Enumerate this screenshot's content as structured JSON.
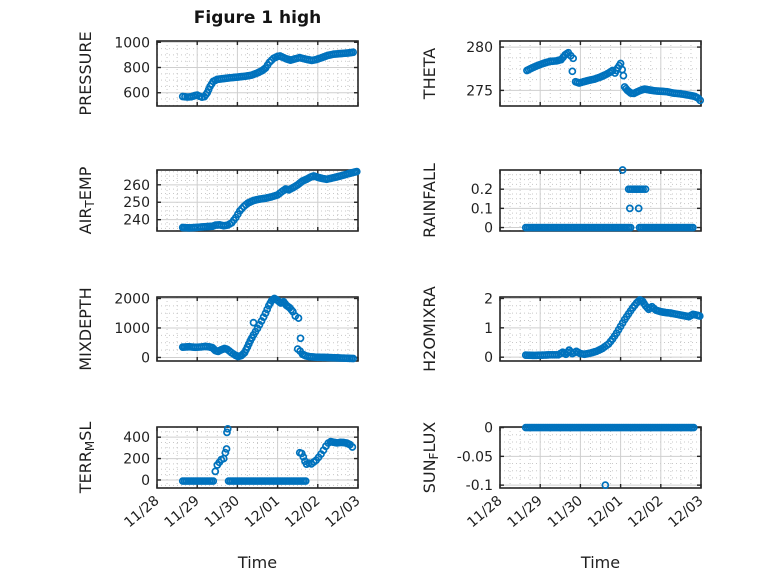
{
  "title": "Figure 1 high",
  "xlabel": "Time",
  "colors": {
    "marker": "#0072BD",
    "axis": "#262626",
    "grid_major": "#cfcfcf",
    "grid_minor": "#c8c8c8",
    "text": "#1f1f1f"
  },
  "x_axis": {
    "ticks": [
      0,
      1,
      2,
      3,
      4,
      5
    ],
    "labels": [
      "11/28",
      "11/29",
      "11/30",
      "12/01",
      "12/02",
      "12/03"
    ]
  },
  "chart_data": [
    {
      "type": "scatter",
      "id": "pressure",
      "name": "PRESSURE",
      "ylabel_parts": [
        {
          "text": "PRESSURE",
          "sub": false
        }
      ],
      "ylim": [
        495,
        1010
      ],
      "yticks": [
        600,
        800,
        1000
      ],
      "series_keypoints": [
        [
          [
            0.64,
            570
          ],
          [
            0.75,
            566
          ],
          [
            0.85,
            568
          ],
          [
            0.95,
            578
          ],
          [
            1.0,
            581
          ],
          [
            1.06,
            572
          ],
          [
            1.12,
            565
          ],
          [
            1.18,
            569
          ],
          [
            1.25,
            600
          ],
          [
            1.32,
            650
          ],
          [
            1.4,
            690
          ],
          [
            1.5,
            706
          ],
          [
            1.65,
            712
          ],
          [
            1.8,
            718
          ],
          [
            2.0,
            724
          ],
          [
            2.2,
            731
          ],
          [
            2.35,
            739
          ],
          [
            2.5,
            757
          ],
          [
            2.62,
            776
          ],
          [
            2.7,
            796
          ],
          [
            2.8,
            842
          ],
          [
            2.9,
            873
          ],
          [
            3.0,
            888
          ],
          [
            3.06,
            891
          ],
          [
            3.2,
            871
          ],
          [
            3.32,
            858
          ],
          [
            3.45,
            870
          ],
          [
            3.55,
            878
          ],
          [
            3.7,
            866
          ],
          [
            3.85,
            856
          ],
          [
            3.95,
            862
          ],
          [
            4.1,
            878
          ],
          [
            4.25,
            896
          ],
          [
            4.4,
            906
          ],
          [
            4.6,
            911
          ],
          [
            4.75,
            915
          ],
          [
            4.88,
            921
          ]
        ]
      ],
      "outliers": []
    },
    {
      "type": "scatter",
      "id": "theta",
      "name": "THETA",
      "ylabel_parts": [
        {
          "text": "THETA",
          "sub": false
        }
      ],
      "ylim": [
        273.2,
        280.7
      ],
      "yticks": [
        275,
        280
      ],
      "series_keypoints": [
        [
          [
            0.67,
            277.3
          ],
          [
            0.8,
            277.6
          ],
          [
            0.95,
            277.9
          ],
          [
            1.1,
            278.15
          ],
          [
            1.25,
            278.35
          ],
          [
            1.4,
            278.4
          ],
          [
            1.52,
            278.55
          ],
          [
            1.62,
            279.1
          ],
          [
            1.7,
            279.35
          ],
          [
            1.76,
            279.0
          ],
          [
            1.82,
            278.7
          ]
        ],
        [
          [
            1.88,
            276.0
          ],
          [
            1.97,
            275.85
          ],
          [
            2.08,
            276.0
          ],
          [
            2.2,
            276.15
          ],
          [
            2.35,
            276.3
          ],
          [
            2.5,
            276.55
          ],
          [
            2.62,
            276.8
          ],
          [
            2.72,
            277.05
          ],
          [
            2.8,
            277.3
          ],
          [
            2.86,
            277.0
          ],
          [
            2.93,
            277.6
          ],
          [
            3.0,
            278.1
          ],
          [
            3.04,
            277.4
          ],
          [
            3.07,
            276.7
          ]
        ],
        [
          [
            3.1,
            275.4
          ],
          [
            3.17,
            275.0
          ],
          [
            3.25,
            274.7
          ],
          [
            3.33,
            274.65
          ],
          [
            3.42,
            274.85
          ],
          [
            3.52,
            275.05
          ],
          [
            3.6,
            275.15
          ],
          [
            3.72,
            275.05
          ],
          [
            3.85,
            274.95
          ],
          [
            4.0,
            274.9
          ],
          [
            4.15,
            274.85
          ],
          [
            4.3,
            274.7
          ],
          [
            4.5,
            274.6
          ],
          [
            4.7,
            274.45
          ],
          [
            4.85,
            274.3
          ],
          [
            4.93,
            274.1
          ],
          [
            4.98,
            273.85
          ]
        ]
      ],
      "outliers": [
        [
          1.8,
          277.2
        ]
      ]
    },
    {
      "type": "scatter",
      "id": "air-temp",
      "name": "AIR_TEMP",
      "ylabel_parts": [
        {
          "text": "AIR",
          "sub": false
        },
        {
          "text": "T",
          "sub": true
        },
        {
          "text": "EMP",
          "sub": false
        }
      ],
      "ylim": [
        233.5,
        268.5
      ],
      "yticks": [
        240,
        250,
        260
      ],
      "series_keypoints": [
        [
          [
            0.64,
            235.5
          ],
          [
            0.8,
            235.3
          ],
          [
            0.95,
            235.5
          ],
          [
            1.1,
            235.8
          ],
          [
            1.25,
            236.0
          ],
          [
            1.38,
            236.2
          ],
          [
            1.46,
            236.9
          ],
          [
            1.56,
            237.0
          ],
          [
            1.66,
            236.5
          ],
          [
            1.76,
            236.9
          ],
          [
            1.86,
            238.2
          ],
          [
            1.96,
            241.2
          ],
          [
            2.06,
            245.0
          ],
          [
            2.16,
            247.6
          ],
          [
            2.26,
            249.5
          ],
          [
            2.4,
            251.0
          ],
          [
            2.55,
            251.8
          ],
          [
            2.7,
            252.3
          ],
          [
            2.85,
            253.1
          ],
          [
            3.0,
            254.2
          ],
          [
            3.1,
            256.0
          ],
          [
            3.2,
            257.6
          ],
          [
            3.28,
            257.1
          ],
          [
            3.38,
            258.3
          ],
          [
            3.5,
            260.0
          ],
          [
            3.62,
            262.2
          ],
          [
            3.72,
            263.2
          ],
          [
            3.82,
            264.4
          ],
          [
            3.9,
            265.1
          ],
          [
            4.0,
            264.3
          ],
          [
            4.12,
            263.6
          ],
          [
            4.22,
            263.2
          ],
          [
            4.32,
            263.7
          ],
          [
            4.45,
            264.4
          ],
          [
            4.6,
            265.3
          ],
          [
            4.75,
            266.3
          ],
          [
            4.88,
            267.1
          ],
          [
            4.97,
            267.6
          ]
        ]
      ],
      "outliers": []
    },
    {
      "type": "scatter",
      "id": "rainfall",
      "name": "RAINFALL",
      "ylabel_parts": [
        {
          "text": "RAINFALL",
          "sub": false
        }
      ],
      "ylim": [
        -0.018,
        0.3
      ],
      "yticks": [
        0,
        0.1,
        0.2
      ],
      "series_keypoints": [
        [
          [
            0.64,
            0
          ],
          [
            3.25,
            0
          ]
        ],
        [
          [
            3.47,
            0
          ],
          [
            4.8,
            0
          ]
        ],
        [
          [
            3.2,
            0.2
          ],
          [
            3.56,
            0.2
          ]
        ]
      ],
      "outliers": [
        [
          3.05,
          0.3
        ],
        [
          3.62,
          0.2
        ],
        [
          3.23,
          0.1
        ],
        [
          3.45,
          0.1
        ]
      ]
    },
    {
      "type": "scatter",
      "id": "mixdepth",
      "name": "MIXDEPTH",
      "ylabel_parts": [
        {
          "text": "MIXDEPTH",
          "sub": false
        }
      ],
      "ylim": [
        -120,
        2050
      ],
      "yticks": [
        0,
        1000,
        2000
      ],
      "series_keypoints": [
        [
          [
            0.64,
            350
          ],
          [
            0.8,
            362
          ],
          [
            0.95,
            345
          ],
          [
            1.1,
            356
          ],
          [
            1.2,
            376
          ],
          [
            1.3,
            360
          ],
          [
            1.38,
            330
          ],
          [
            1.45,
            235
          ],
          [
            1.52,
            205
          ],
          [
            1.6,
            262
          ],
          [
            1.68,
            305
          ],
          [
            1.75,
            272
          ],
          [
            1.85,
            165
          ],
          [
            1.95,
            75
          ],
          [
            2.02,
            30
          ],
          [
            2.1,
            65
          ],
          [
            2.18,
            165
          ],
          [
            2.25,
            355
          ],
          [
            2.32,
            565
          ],
          [
            2.4,
            765
          ],
          [
            2.5,
            985
          ],
          [
            2.6,
            1235
          ],
          [
            2.7,
            1500
          ],
          [
            2.78,
            1755
          ],
          [
            2.85,
            1925
          ],
          [
            2.92,
            2000
          ],
          [
            3.0,
            1935
          ],
          [
            3.08,
            1845
          ],
          [
            3.15,
            1890
          ],
          [
            3.22,
            1765
          ],
          [
            3.3,
            1685
          ],
          [
            3.38,
            1555
          ],
          [
            3.44,
            1405
          ]
        ],
        [
          [
            3.62,
            110
          ],
          [
            3.7,
            55
          ],
          [
            3.8,
            25
          ],
          [
            3.95,
            10
          ],
          [
            4.2,
            0
          ],
          [
            4.5,
            -15
          ],
          [
            4.7,
            -25
          ],
          [
            4.88,
            -35
          ]
        ]
      ],
      "outliers": [
        [
          2.4,
          1180
        ],
        [
          3.52,
          1335
        ],
        [
          3.57,
          650
        ],
        [
          3.5,
          285
        ],
        [
          3.56,
          215
        ]
      ]
    },
    {
      "type": "scatter",
      "id": "h2omixra",
      "name": "H2OMIXRA",
      "ylabel_parts": [
        {
          "text": "H2OMIXRA",
          "sub": false
        }
      ],
      "ylim": [
        -0.13,
        2.05
      ],
      "yticks": [
        0,
        1,
        2
      ],
      "series_keypoints": [
        [
          [
            0.64,
            0.07
          ],
          [
            0.85,
            0.06
          ],
          [
            1.05,
            0.07
          ],
          [
            1.25,
            0.08
          ],
          [
            1.45,
            0.08
          ],
          [
            1.56,
            0.17
          ],
          [
            1.64,
            0.1
          ],
          [
            1.72,
            0.24
          ],
          [
            1.8,
            0.12
          ],
          [
            1.9,
            0.2
          ],
          [
            2.0,
            0.12
          ],
          [
            2.1,
            0.1
          ],
          [
            2.25,
            0.14
          ],
          [
            2.4,
            0.2
          ],
          [
            2.55,
            0.3
          ],
          [
            2.7,
            0.45
          ],
          [
            2.8,
            0.62
          ],
          [
            2.9,
            0.82
          ],
          [
            3.0,
            1.05
          ],
          [
            3.1,
            1.28
          ],
          [
            3.2,
            1.48
          ],
          [
            3.3,
            1.68
          ],
          [
            3.4,
            1.85
          ],
          [
            3.48,
            1.95
          ],
          [
            3.55,
            1.9
          ],
          [
            3.62,
            1.75
          ],
          [
            3.7,
            1.63
          ],
          [
            3.78,
            1.72
          ],
          [
            3.88,
            1.6
          ],
          [
            4.0,
            1.55
          ],
          [
            4.12,
            1.52
          ],
          [
            4.25,
            1.5
          ],
          [
            4.4,
            1.46
          ],
          [
            4.55,
            1.42
          ],
          [
            4.7,
            1.38
          ],
          [
            4.8,
            1.46
          ],
          [
            4.9,
            1.43
          ],
          [
            4.97,
            1.4
          ]
        ]
      ],
      "outliers": []
    },
    {
      "type": "scatter",
      "id": "terr-msl",
      "name": "TERR_MSL",
      "ylabel_parts": [
        {
          "text": "TERR",
          "sub": false
        },
        {
          "text": "M",
          "sub": true
        },
        {
          "text": "SL",
          "sub": false
        }
      ],
      "ylim": [
        -75,
        495
      ],
      "yticks": [
        0,
        200,
        400
      ],
      "series_keypoints": [
        [
          [
            0.64,
            -10
          ],
          [
            1.4,
            -10
          ]
        ],
        [
          [
            1.45,
            80
          ],
          [
            1.5,
            140
          ],
          [
            1.55,
            165
          ],
          [
            1.6,
            190
          ],
          [
            1.66,
            200
          ],
          [
            1.7,
            255
          ],
          [
            1.73,
            290
          ]
        ],
        [
          [
            1.78,
            -10
          ],
          [
            3.7,
            -10
          ]
        ],
        [
          [
            3.55,
            255
          ],
          [
            3.6,
            248
          ],
          [
            3.64,
            215
          ],
          [
            3.68,
            175
          ],
          [
            3.72,
            148
          ],
          [
            3.78,
            158
          ],
          [
            3.84,
            150
          ],
          [
            3.9,
            168
          ],
          [
            3.96,
            185
          ],
          [
            4.02,
            212
          ],
          [
            4.08,
            242
          ],
          [
            4.14,
            278
          ],
          [
            4.2,
            315
          ],
          [
            4.26,
            345
          ],
          [
            4.32,
            358
          ],
          [
            4.4,
            352
          ],
          [
            4.48,
            346
          ],
          [
            4.56,
            351
          ],
          [
            4.64,
            350
          ],
          [
            4.72,
            344
          ],
          [
            4.8,
            330
          ],
          [
            4.86,
            308
          ]
        ]
      ],
      "outliers": [
        [
          1.74,
          445
        ],
        [
          1.76,
          478
        ]
      ]
    },
    {
      "type": "scatter",
      "id": "sun-flux",
      "name": "SUN_FLUX",
      "ylabel_parts": [
        {
          "text": "SUN",
          "sub": false
        },
        {
          "text": "F",
          "sub": true
        },
        {
          "text": "LUX",
          "sub": false
        }
      ],
      "ylim": [
        -0.105,
        0.001
      ],
      "yticks": [
        -0.1,
        -0.05,
        0
      ],
      "series_keypoints": [
        [
          [
            0.64,
            0
          ],
          [
            4.82,
            0
          ]
        ]
      ],
      "outliers": [
        [
          2.62,
          -0.1
        ]
      ]
    }
  ]
}
